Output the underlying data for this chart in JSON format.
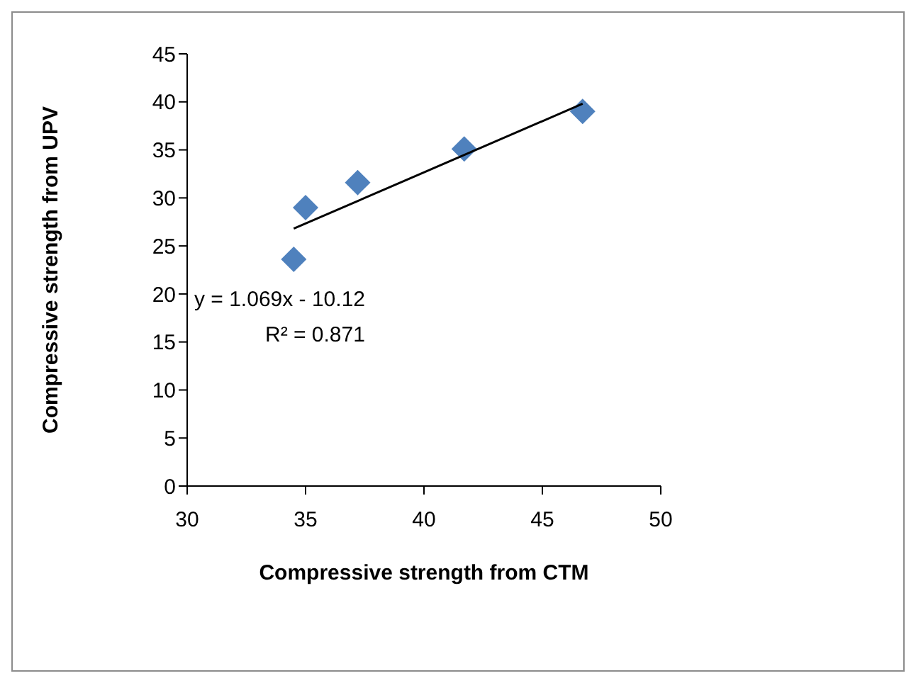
{
  "chart_data": {
    "type": "scatter",
    "xlabel": "Compressive strength from CTM",
    "ylabel": "Compressive strength from UPV",
    "series": [
      {
        "color": "#4f81bd",
        "marker": "diamond",
        "x": [
          34.5,
          35.0,
          37.2,
          41.7,
          46.7
        ],
        "values": [
          23.6,
          29.0,
          31.6,
          35.1,
          39.0
        ]
      },
      {
        "type": "line",
        "color": "#000000",
        "marker": "none",
        "x": [
          34.5,
          46.7
        ],
        "values": [
          26.8,
          39.8
        ]
      }
    ],
    "xlim": [
      30,
      50
    ],
    "xticks": [
      30,
      35,
      40,
      45,
      50
    ],
    "ylim": [
      0,
      45
    ],
    "yticks": [
      0,
      5,
      10,
      15,
      20,
      25,
      30,
      35,
      40,
      45
    ],
    "grid": false,
    "annotations": [
      "y = 1.069x - 10.12",
      "R² = 0.871"
    ]
  }
}
